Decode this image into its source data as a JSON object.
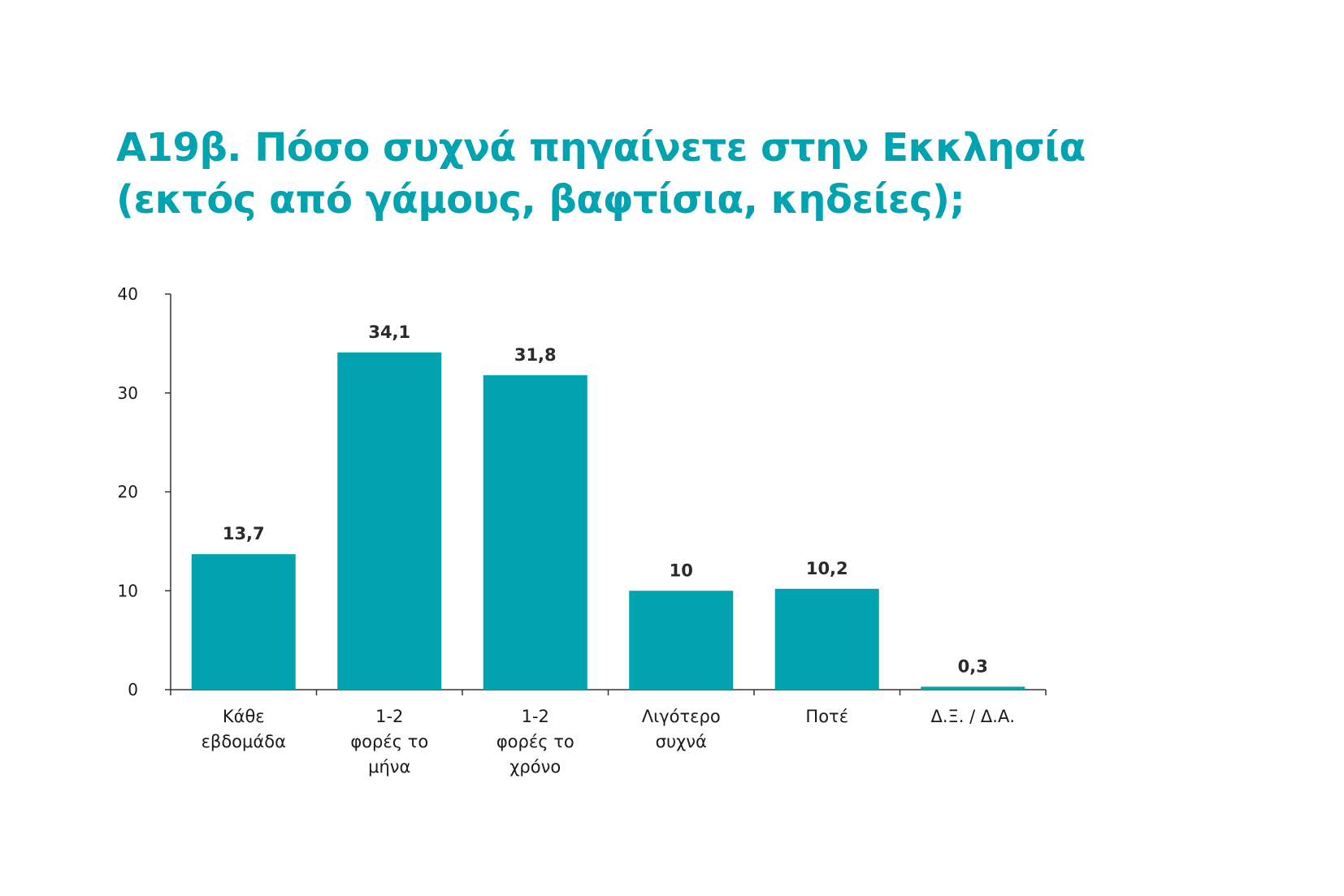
{
  "title": {
    "line1": "Α19β. Πόσο συχνά πηγαίνετε στην Εκκλησία",
    "line2": "(εκτός από γάμους, βαφτίσια, κηδείες);"
  },
  "colors": {
    "title": "#00a3af",
    "bar": "#00a3af",
    "axis": "#333333"
  },
  "chart_data": {
    "type": "bar",
    "categories": [
      [
        "Κάθε",
        "εβδομάδα"
      ],
      [
        "1-2",
        "φορές το",
        "μήνα"
      ],
      [
        "1-2",
        "φορές το",
        "χρόνο"
      ],
      [
        "Λιγότερο",
        "συχνά"
      ],
      [
        "Ποτέ"
      ],
      [
        "Δ.Ξ. / Δ.Α."
      ]
    ],
    "values": [
      13.7,
      34.1,
      31.8,
      10,
      10.2,
      0.3
    ],
    "value_labels": [
      "13,7",
      "34,1",
      "31,8",
      "10",
      "10,2",
      "0,3"
    ],
    "yticks": [
      0,
      10,
      20,
      30,
      40
    ],
    "ylim": [
      0,
      40
    ],
    "grid": false,
    "legend": "none"
  }
}
